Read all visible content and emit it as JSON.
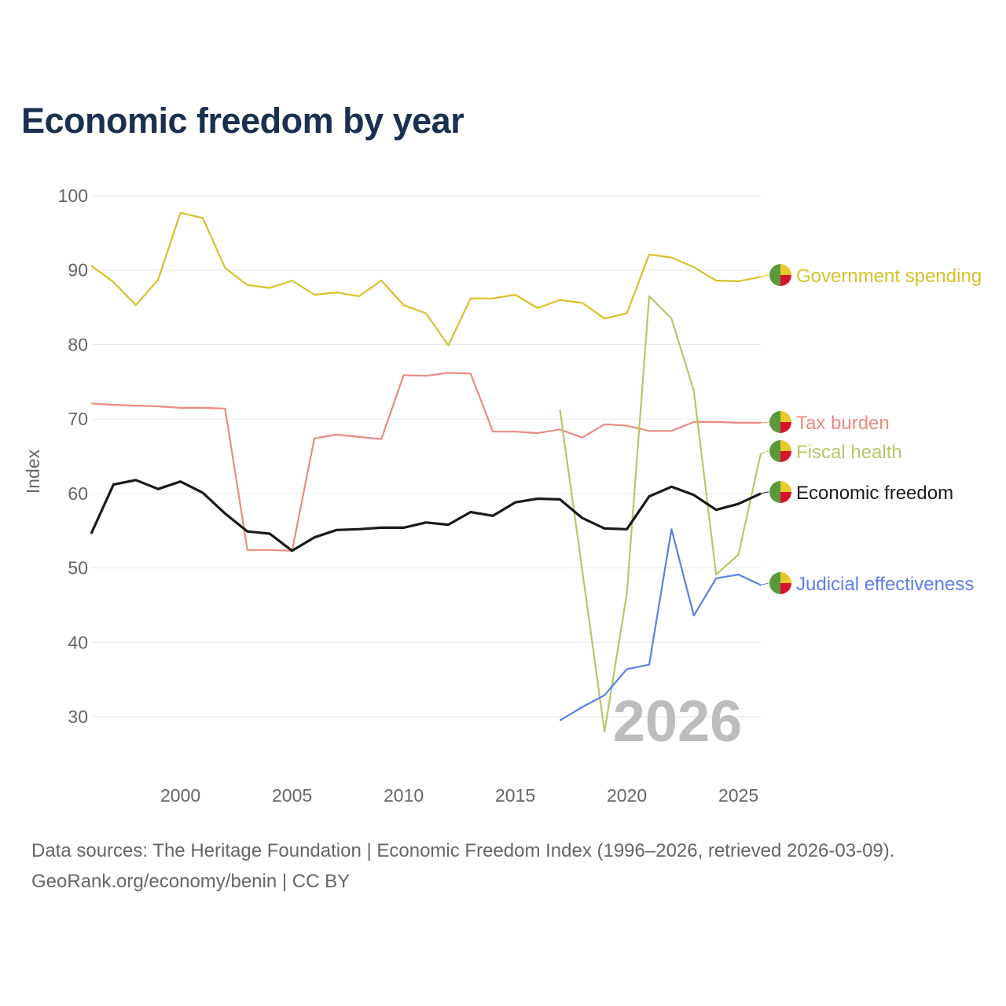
{
  "chart_data": {
    "type": "line",
    "title": "Economic freedom by year",
    "xlabel": "",
    "ylabel": "Index",
    "xlim": [
      1996,
      2026
    ],
    "ylim": [
      22,
      100
    ],
    "yticks": [
      30,
      40,
      50,
      60,
      70,
      80,
      90,
      100
    ],
    "xticks": [
      2000,
      2005,
      2010,
      2015,
      2020,
      2025
    ],
    "grid": true,
    "watermark": "2026",
    "legend_placement": "right, line-end labels",
    "series": [
      {
        "name": "Government spending",
        "color": "#d6c12b",
        "width": 2.2,
        "start": 1996,
        "values": [
          90.6,
          88.4,
          85.3,
          88.7,
          97.7,
          97.0,
          90.3,
          88.0,
          87.6,
          88.6,
          86.7,
          87.0,
          86.5,
          88.6,
          85.3,
          84.2,
          79.9,
          86.2,
          86.2,
          86.7,
          84.9,
          86.0,
          85.6,
          83.5,
          84.2,
          92.1,
          91.7,
          90.4,
          88.6,
          88.5,
          89.1
        ]
      },
      {
        "name": "Tax burden",
        "color": "#ec8a82",
        "width": 2.2,
        "start": 1996,
        "values": [
          72.1,
          71.9,
          71.8,
          71.7,
          71.5,
          71.5,
          71.4,
          52.4,
          52.4,
          52.3,
          67.4,
          67.9,
          67.6,
          67.3,
          75.9,
          75.8,
          76.2,
          76.1,
          68.3,
          68.3,
          68.1,
          68.6,
          67.5,
          69.3,
          69.1,
          68.4,
          68.4,
          69.6,
          69.6,
          69.5,
          69.5
        ]
      },
      {
        "name": "Fiscal health",
        "color": "#b8c66a",
        "width": 2.2,
        "start": 2017,
        "values": [
          71.3,
          49.7,
          28.0,
          46.6,
          86.5,
          83.5,
          73.8,
          49.1,
          51.8,
          65.4
        ]
      },
      {
        "name": "Economic freedom",
        "color": "#1a1a1a",
        "width": 3.2,
        "start": 1996,
        "values": [
          54.6,
          61.2,
          61.8,
          60.6,
          61.6,
          60.1,
          57.3,
          54.9,
          54.6,
          52.3,
          54.1,
          55.1,
          55.2,
          55.4,
          55.4,
          56.1,
          55.8,
          57.5,
          57.0,
          58.8,
          59.3,
          59.2,
          56.7,
          55.3,
          55.2,
          59.6,
          60.9,
          59.8,
          57.8,
          58.6,
          60.0
        ]
      },
      {
        "name": "Judicial effectiveness",
        "color": "#5b7fe8",
        "width": 2.2,
        "start": 2017,
        "values": [
          29.5,
          31.3,
          32.9,
          36.4,
          37.0,
          55.2,
          43.6,
          48.6,
          49.1,
          47.7
        ]
      }
    ],
    "label_order": [
      "Government spending",
      "Tax burden",
      "Fiscal health",
      "Economic freedom",
      "Judicial effectiveness"
    ]
  },
  "flag_colors": {
    "green": "#5a9a3a",
    "yellow": "#e6c92a",
    "red": "#d8122e"
  },
  "footer": {
    "line1": "Data sources: The Heritage Foundation | Economic Freedom Index (1996–2026, retrieved 2026-03-09).",
    "line2": "GeoRank.org/economy/benin | CC BY"
  }
}
